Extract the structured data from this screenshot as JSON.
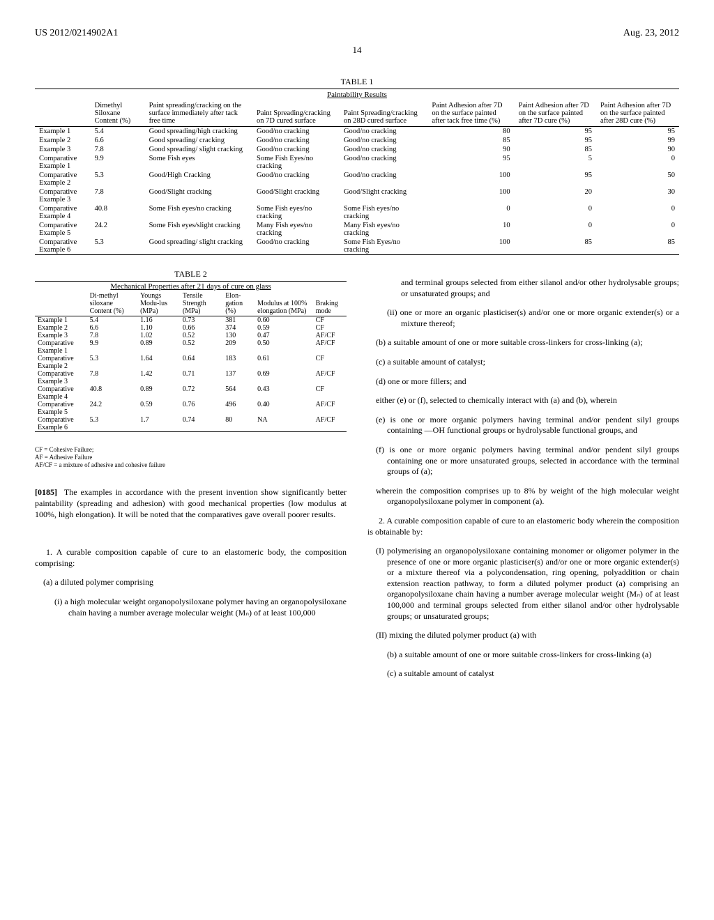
{
  "header": {
    "left": "US 2012/0214902A1",
    "right": "Aug. 23, 2012"
  },
  "page_number": "14",
  "table1": {
    "label": "TABLE 1",
    "title": "Paintability Results",
    "headers": [
      "",
      "Dimethyl Siloxane Content (%)",
      "Paint spreading/cracking on the surface immediately after tack free time",
      "Paint Spreading/cracking on 7D cured surface",
      "Paint Spreading/cracking on 28D cured surface",
      "Paint Adhesion after 7D on the surface painted after tack free time (%)",
      "Paint Adhesion after 7D on the surface painted after 7D cure (%)",
      "Paint Adhesion after 7D on the surface painted after 28D cure (%)"
    ],
    "rows": [
      [
        "Example 1",
        "5.4",
        "Good spreading/high cracking",
        "Good/no cracking",
        "Good/no cracking",
        "80",
        "95",
        "95"
      ],
      [
        "Example 2",
        "6.6",
        "Good spreading/ cracking",
        "Good/no cracking",
        "Good/no cracking",
        "85",
        "95",
        "99"
      ],
      [
        "Example 3",
        "7.8",
        "Good spreading/ slight cracking",
        "Good/no cracking",
        "Good/no cracking",
        "90",
        "85",
        "90"
      ],
      [
        "Comparative Example 1",
        "9.9",
        "Some Fish eyes",
        "Some Fish Eyes/no cracking",
        "Good/no cracking",
        "95",
        "5",
        "0"
      ],
      [
        "Comparative Example 2",
        "5.3",
        "Good/High Cracking",
        "Good/no cracking",
        "Good/no cracking",
        "100",
        "95",
        "50"
      ],
      [
        "Comparative Example 3",
        "7.8",
        "Good/Slight cracking",
        "Good/Slight cracking",
        "Good/Slight cracking",
        "100",
        "20",
        "30"
      ],
      [
        "Comparative Example 4",
        "40.8",
        "Some Fish eyes/no cracking",
        "Some Fish eyes/no cracking",
        "Some Fish eyes/no cracking",
        "0",
        "0",
        "0"
      ],
      [
        "Comparative Example 5",
        "24.2",
        "Some Fish eyes/slight cracking",
        "Many Fish eyes/no cracking",
        "Many Fish eyes/no cracking",
        "10",
        "0",
        "0"
      ],
      [
        "Comparative Example 6",
        "5.3",
        "Good spreading/ slight cracking",
        "Good/no cracking",
        "Some Fish Eyes/no cracking",
        "100",
        "85",
        "85"
      ]
    ]
  },
  "table2": {
    "label": "TABLE 2",
    "title": "Mechanical Properties after 21 days of cure on glass",
    "headers": [
      "",
      "Di-methyl siloxane Content (%)",
      "Youngs Modu-lus (MPa)",
      "Tensile Strength (MPa)",
      "Elon-gation (%)",
      "Modulus at 100% elongation (MPa)",
      "Braking mode"
    ],
    "rows": [
      [
        "Example 1",
        "5.4",
        "1.16",
        "0.73",
        "381",
        "0.60",
        "CF"
      ],
      [
        "Example 2",
        "6.6",
        "1.10",
        "0.66",
        "374",
        "0.59",
        "CF"
      ],
      [
        "Example 3",
        "7.8",
        "1.02",
        "0.52",
        "130",
        "0.47",
        "AF/CF"
      ],
      [
        "Comparative Example 1",
        "9.9",
        "0.89",
        "0.52",
        "209",
        "0.50",
        "AF/CF"
      ],
      [
        "Comparative Example 2",
        "5.3",
        "1.64",
        "0.64",
        "183",
        "0.61",
        "CF"
      ],
      [
        "Comparative Example 3",
        "7.8",
        "1.42",
        "0.71",
        "137",
        "0.69",
        "AF/CF"
      ],
      [
        "Comparative Example 4",
        "40.8",
        "0.89",
        "0.72",
        "564",
        "0.43",
        "CF"
      ],
      [
        "Comparative Example 5",
        "24.2",
        "0.59",
        "0.76",
        "496",
        "0.40",
        "AF/CF"
      ],
      [
        "Comparative Example 6",
        "5.3",
        "1.7",
        "0.74",
        "80",
        "NA",
        "AF/CF"
      ]
    ],
    "footnotes": [
      "CF = Cohesive Failure;",
      "AF = Adhesive Failure",
      "AF/CF = a mixture of adhesive and cohesive failure"
    ]
  },
  "paragraph": {
    "ref": "[0185]",
    "text": "The examples in accordance with the present invention show significantly better paintability (spreading and adhesion) with good mechanical properties (low modulus at 100%, high elongation). It will be noted that the comparatives gave overall poorer results."
  },
  "claim1": {
    "intro": "1. A curable composition capable of cure to an elastomeric body, the composition comprising:",
    "a": "(a) a diluted polymer comprising",
    "a_i": "(i) a high molecular weight organopolysiloxane polymer having an organopolysiloxane chain having a number average molecular weight (Mₙ) of at least 100,000",
    "a_i_cont": "and terminal groups selected from either silanol and/or other hydrolysable groups; or unsaturated groups; and",
    "a_ii": "(ii) one or more an organic plasticiser(s) and/or one or more organic extender(s) or a mixture thereof;",
    "b": "(b) a suitable amount of one or more suitable cross-linkers for cross-linking (a);",
    "c": "(c) a suitable amount of catalyst;",
    "d": "(d) one or more fillers; and",
    "ef_intro": "either (e) or (f), selected to chemically interact with (a) and (b), wherein",
    "e": "(e) is one or more organic polymers having terminal and/or pendent silyl groups containing —OH functional groups or hydrolysable functional groups, and",
    "f": "(f) is one or more organic polymers having terminal and/or pendent silyl groups containing one or more unsaturated groups, selected in accordance with the terminal groups of (a);",
    "wherein": "wherein the composition comprises up to 8% by weight of the high molecular weight organopolysiloxane polymer in component (a)."
  },
  "claim2": {
    "intro": "2. A curable composition capable of cure to an elastomeric body wherein the composition is obtainable by:",
    "I": "(I) polymerising an organopolysiloxane containing monomer or oligomer polymer in the presence of one or more organic plasticiser(s) and/or one or more organic extender(s) or a mixture thereof via a polycondensation, ring opening, polyaddition or chain extension reaction pathway, to form a diluted polymer product (a) comprising an organopolysiloxane chain having a number average molecular weight (Mₙ) of at least 100,000 and terminal groups selected from either silanol and/or other hydrolysable groups; or unsaturated groups;",
    "II": "(II) mixing the diluted polymer product (a) with",
    "II_b": "(b) a suitable amount of one or more suitable cross-linkers for cross-linking (a)",
    "II_c": "(c) a suitable amount of catalyst"
  }
}
